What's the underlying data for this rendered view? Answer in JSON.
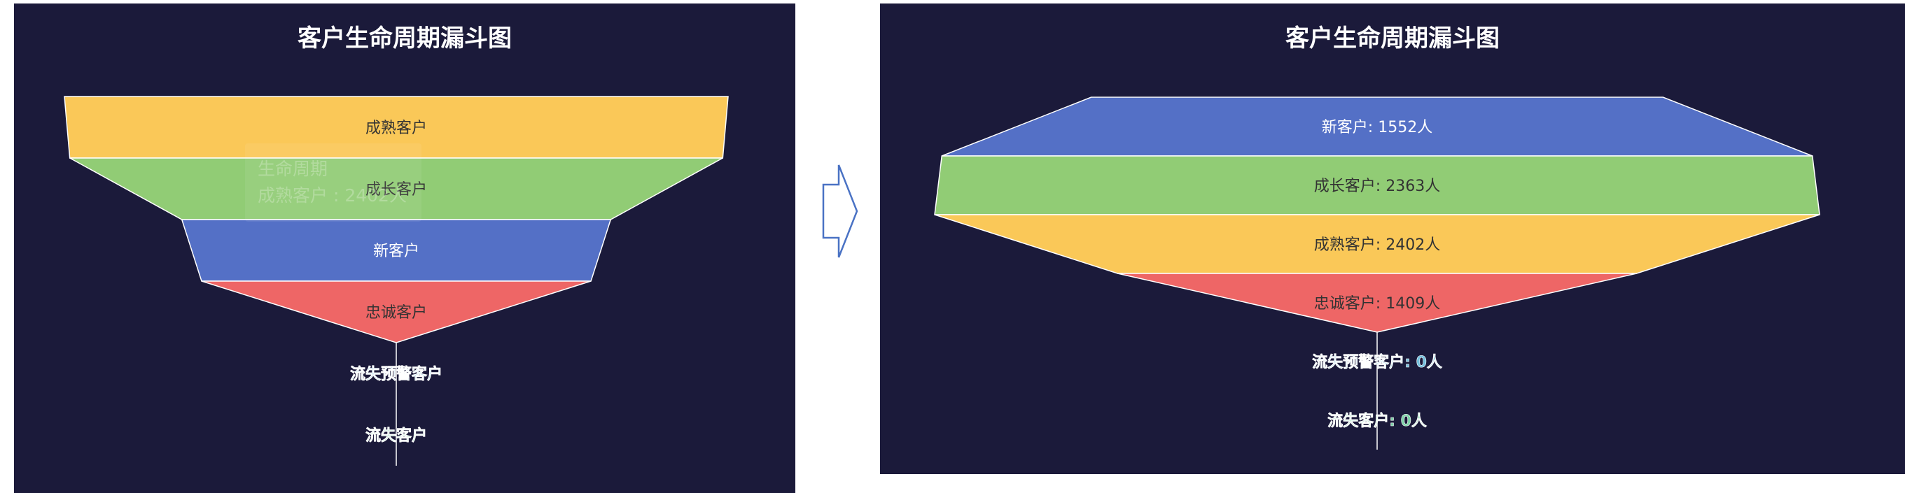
{
  "colors": {
    "background": "#1b1a3a",
    "blue": "#5470c6",
    "green": "#91cc75",
    "yellow": "#fac858",
    "red": "#ee6666",
    "cyan_label": "#73c0de",
    "teal_label": "#7ed3a8"
  },
  "arrow_icon": "right-outline-arrow-icon",
  "chart_data": [
    {
      "type": "funnel",
      "title": "客户生命周期漏斗图",
      "tooltip": {
        "title": "生命周期",
        "line": "成熟客户 : 2402人"
      },
      "series": [
        {
          "name": "成熟客户",
          "label": "成熟客户",
          "value": 2402,
          "color": "#fac858"
        },
        {
          "name": "成长客户",
          "label": "成长客户",
          "value": 2363,
          "color": "#91cc75"
        },
        {
          "name": "新客户",
          "label": "新客户",
          "value": 1552,
          "color": "#5470c6"
        },
        {
          "name": "忠诚客户",
          "label": "忠诚客户",
          "value": 1409,
          "color": "#ee6666"
        },
        {
          "name": "流失预警客户",
          "label": "流失预警客户",
          "value": 0,
          "color": "#73c0de"
        },
        {
          "name": "流失客户",
          "label": "流失客户",
          "value": 0,
          "color": "#7ed3a8"
        }
      ]
    },
    {
      "type": "funnel",
      "title": "客户生命周期漏斗图",
      "series": [
        {
          "name": "新客户",
          "label": "新客户: 1552人",
          "value": 1552,
          "color": "#5470c6"
        },
        {
          "name": "成长客户",
          "label": "成长客户: 2363人",
          "value": 2363,
          "color": "#91cc75"
        },
        {
          "name": "成熟客户",
          "label": "成熟客户: 2402人",
          "value": 2402,
          "color": "#fac858"
        },
        {
          "name": "忠诚客户",
          "label": "忠诚客户: 1409人",
          "value": 1409,
          "color": "#ee6666"
        },
        {
          "name": "流失预警客户",
          "label": "流失预警客户: 0人",
          "value": 0,
          "color": "#73c0de"
        },
        {
          "name": "流失客户",
          "label": "流失客户: 0人",
          "value": 0,
          "color": "#7ed3a8"
        }
      ]
    }
  ]
}
